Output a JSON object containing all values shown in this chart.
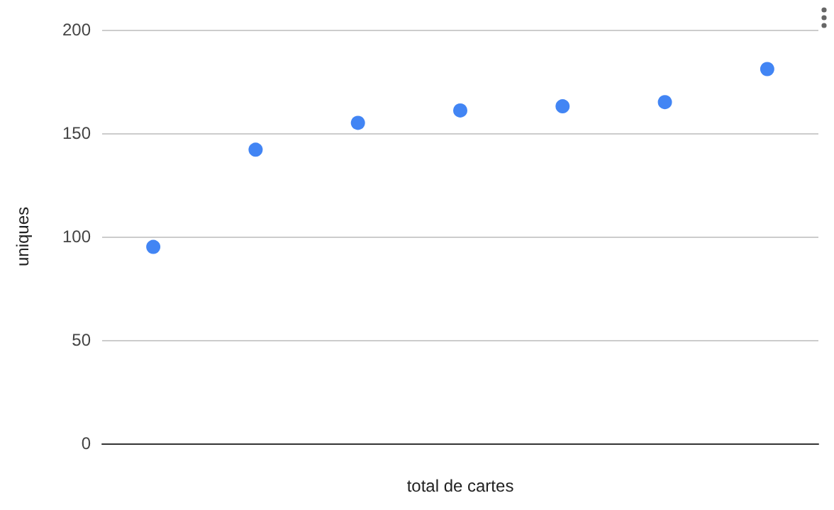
{
  "chart_data": {
    "type": "scatter",
    "xlabel": "total de cartes",
    "ylabel": "uniques",
    "categories": [
      null,
      null,
      null,
      null,
      null,
      null,
      null
    ],
    "series": [
      {
        "color": "#4285f4",
        "values": [
          95,
          142,
          155,
          161,
          163,
          165,
          181
        ]
      }
    ],
    "ylim": [
      0,
      200
    ],
    "yticks": [
      0,
      50,
      100,
      150,
      200
    ],
    "grid": "y",
    "marker": "circle"
  }
}
